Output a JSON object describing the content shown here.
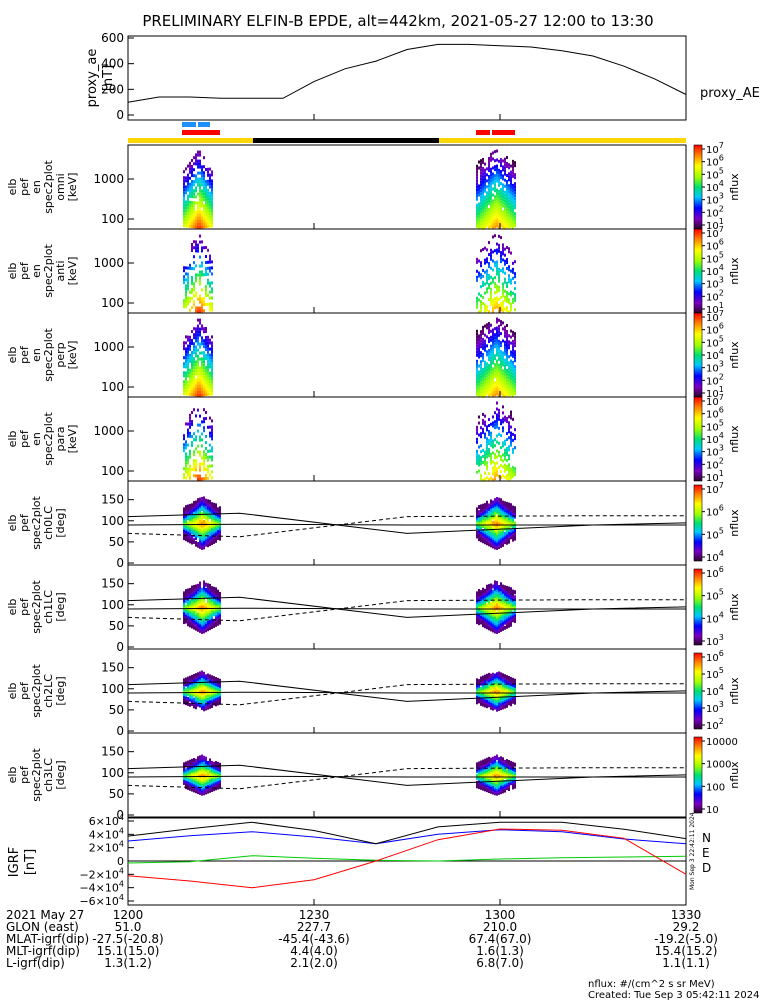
{
  "title": "PRELIMINARY ELFIN-B EPDE, alt=442km, 2021-05-27 12:00 to 13:30",
  "colors": {
    "bar_yellow": "#ffd700",
    "bar_black": "#000000",
    "marker_blue": "#1e90ff",
    "marker_red": "#ff0000",
    "geo_n": "#0000ff",
    "geo_e": "#00cc00",
    "geo_d": "#ff0000"
  },
  "chart_data": [
    {
      "type": "line",
      "panel": "proxy_ae",
      "ylabel": "proxy_ae [nT]",
      "legend": "proxy_AE",
      "ylim": [
        0,
        600
      ],
      "yticks": [
        "600",
        "400",
        "200",
        "0"
      ],
      "x_minutes": [
        0,
        5,
        10,
        15,
        20,
        25,
        30,
        35,
        40,
        45,
        50,
        55,
        60,
        65,
        70,
        75,
        80,
        85,
        90
      ],
      "values": [
        100,
        140,
        140,
        130,
        130,
        130,
        260,
        360,
        420,
        510,
        550,
        550,
        540,
        530,
        500,
        460,
        380,
        280,
        160
      ]
    },
    {
      "type": "heatmap",
      "panel": "energy spectrograms",
      "xlim_minutes": [
        0,
        90
      ],
      "panels": [
        {
          "ylabel": "elb pef en spec2plot omni [keV]",
          "yticks": [
            "1000",
            "100"
          ],
          "colorbar": [
            "10^7",
            "10^6",
            "10^5",
            "10^4",
            "10^3",
            "10^2",
            "10^1"
          ],
          "cbar_label": "nflux"
        },
        {
          "ylabel": "elb pef en spec2plot anti [keV]",
          "yticks": [
            "1000",
            "100"
          ],
          "colorbar": [
            "10^7",
            "10^6",
            "10^5",
            "10^4",
            "10^3",
            "10^2",
            "10^1"
          ],
          "cbar_label": "nflux"
        },
        {
          "ylabel": "elb pef en spec2plot perp [keV]",
          "yticks": [
            "1000",
            "100"
          ],
          "colorbar": [
            "10^7",
            "10^6",
            "10^5",
            "10^4",
            "10^3",
            "10^2",
            "10^1"
          ],
          "cbar_label": "nflux"
        },
        {
          "ylabel": "elb pef en spec2plot para [keV]",
          "yticks": [
            "1000",
            "100"
          ],
          "colorbar": [
            "10^7",
            "10^6",
            "10^5",
            "10^4",
            "10^3",
            "10^2",
            "10^1"
          ],
          "cbar_label": "nflux"
        }
      ]
    },
    {
      "type": "heatmap",
      "panel": "pitch-angle spectrograms",
      "ylim": [
        0,
        180
      ],
      "panels": [
        {
          "ylabel": "elb pef spec2plot ch0LC [deg]",
          "yticks": [
            "150",
            "100",
            "50",
            "0"
          ],
          "colorbar": [
            "10^7",
            "10^6",
            "10^5",
            "10^4"
          ],
          "cbar_label": "nflux"
        },
        {
          "ylabel": "elb pef spec2plot ch1LC [deg]",
          "yticks": [
            "150",
            "100",
            "50",
            "0"
          ],
          "colorbar": [
            "10^6",
            "10^5",
            "10^4",
            "10^3"
          ],
          "cbar_label": "nflux"
        },
        {
          "ylabel": "elb pef spec2plot ch2LC [deg]",
          "yticks": [
            "150",
            "100",
            "50",
            "0"
          ],
          "colorbar": [
            "10^6",
            "10^5",
            "10^4",
            "10^3",
            "10^2"
          ],
          "cbar_label": "nflux"
        },
        {
          "ylabel": "elb pef spec2plot ch3LC [deg]",
          "yticks": [
            "150",
            "100",
            "50",
            "0"
          ],
          "colorbar": [
            "10000",
            "1000",
            "100",
            "10"
          ],
          "cbar_label": "nflux"
        }
      ]
    },
    {
      "type": "line",
      "panel": "IGRF",
      "ylabel": "IGRF [nT]",
      "ylim": [
        -60000,
        60000
      ],
      "yticks": [
        "6×10^4",
        "4×10^4",
        "2×10^4",
        "0",
        "−2×10^4",
        "−4×10^4",
        "−6×10^4"
      ],
      "x_minutes": [
        0,
        10,
        20,
        30,
        40,
        50,
        60,
        70,
        80,
        90
      ],
      "series": [
        {
          "name": "N",
          "values": [
            30000,
            38000,
            44000,
            36000,
            26000,
            40000,
            47000,
            44000,
            33000,
            26000
          ]
        },
        {
          "name": "E",
          "values": [
            -3000,
            -1000,
            8000,
            4000,
            1000,
            0,
            3000,
            5000,
            6000,
            7000
          ]
        },
        {
          "name": "D",
          "values": [
            -22000,
            -30000,
            -40000,
            -28000,
            0,
            32000,
            48000,
            46000,
            34000,
            -20000
          ]
        }
      ]
    }
  ],
  "axis_footer": {
    "rows": [
      {
        "label": "2021 May 27",
        "values": [
          "1200",
          "1230",
          "1300",
          "1330"
        ]
      },
      {
        "label": "GLON (east)",
        "values": [
          "51.0",
          "227.7",
          "210.0",
          "29.2"
        ]
      },
      {
        "label": "MLAT-igrf(dip)",
        "values": [
          "-27.5(-20.8)",
          "-45.4(-43.6)",
          "67.4(67.0)",
          "-19.2(-5.0)"
        ]
      },
      {
        "label": "MLT-igrf(dip)",
        "values": [
          "15.1(15.0)",
          "4.4(4.0)",
          "1.6(1.3)",
          "15.4(15.2)"
        ]
      },
      {
        "label": "L-igrf(dip)",
        "values": [
          "1.3(1.2)",
          "2.1(2.0)",
          "6.8(7.0)",
          "1.1(1.1)"
        ]
      }
    ]
  },
  "footnote": {
    "units": "nflux: #/(cm^2 s sr MeV)",
    "created": "Created: Tue Sep  3 05:42:11 2024"
  },
  "side_stamp": "Mon Sep  3 22:42:11 2024"
}
